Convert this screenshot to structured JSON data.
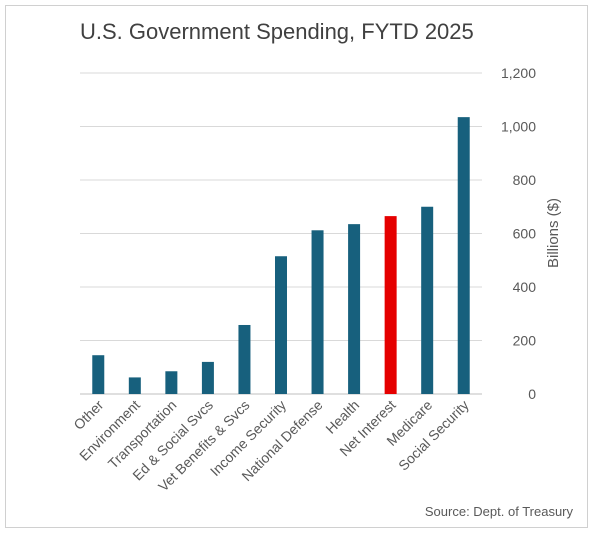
{
  "chart_data": {
    "type": "bar",
    "title": "U.S. Government Spending, FYTD 2025",
    "source": "Source: Dept. of Treasury",
    "ylabel": "Billions ($)",
    "y_axis_position": "right",
    "ylim": [
      0,
      1200
    ],
    "yticks": [
      0,
      200,
      400,
      600,
      800,
      1000,
      1200
    ],
    "ytick_labels": [
      "0",
      "200",
      "400",
      "600",
      "800",
      "1,000",
      "1,200"
    ],
    "grid": true,
    "categories": [
      "Other",
      "Environment",
      "Transportation",
      "Ed & Social Svcs",
      "Vet Benefits & Svcs",
      "Income Security",
      "National Defense",
      "Health",
      "Net Interest",
      "Medicare",
      "Social Security"
    ],
    "values": [
      145,
      62,
      85,
      120,
      258,
      515,
      612,
      635,
      665,
      700,
      1035
    ],
    "colors": {
      "default": "#17607d",
      "highlight": "#e50000",
      "highlight_category": "Net Interest"
    }
  }
}
